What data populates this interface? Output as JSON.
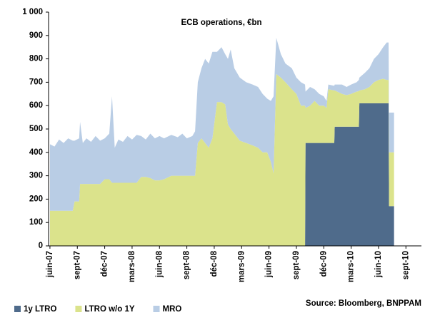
{
  "chart_data": {
    "type": "stacked_area",
    "title": "ECB operations, €bn",
    "source": "Source: Bloomberg, BNPPAM",
    "x": [
      0,
      0.5,
      1,
      1.5,
      2,
      2.5,
      2.7,
      3.2,
      3.3,
      3.6,
      4,
      4.5,
      5,
      5.5,
      6,
      6.5,
      6.8,
      7.1,
      7.5,
      8,
      8.5,
      9,
      9.5,
      10,
      10.5,
      11,
      11.5,
      12,
      12.5,
      13.3,
      14,
      14.5,
      15,
      15.6,
      15.9,
      16.2,
      16.6,
      17,
      17.4,
      17.8,
      18.3,
      18.8,
      19.2,
      19.5,
      19.8,
      20.2,
      20.8,
      21.5,
      22.2,
      22.8,
      23.3,
      23.8,
      24.2,
      24.5,
      24.8,
      25.3,
      25.8,
      26.5,
      27,
      27.5,
      27.95,
      28,
      28.5,
      29,
      29.5,
      30,
      30.3,
      30.5,
      31.15,
      31.2,
      32,
      32.5,
      33,
      33.6,
      33.85,
      33.9,
      34.5,
      35,
      35.5,
      36,
      36.5,
      36.9,
      37.1,
      37.15,
      37.7
    ],
    "series": [
      {
        "name": "1y LTRO",
        "color": "#4f6b8b",
        "values": [
          0,
          0,
          0,
          0,
          0,
          0,
          0,
          0,
          0,
          0,
          0,
          0,
          0,
          0,
          0,
          0,
          0,
          0,
          0,
          0,
          0,
          0,
          0,
          0,
          0,
          0,
          0,
          0,
          0,
          0,
          0,
          0,
          0,
          0,
          0,
          0,
          0,
          0,
          0,
          0,
          0,
          0,
          0,
          0,
          0,
          0,
          0,
          0,
          0,
          0,
          0,
          0,
          0,
          0,
          0,
          0,
          0,
          0,
          0,
          0,
          0,
          440,
          440,
          440,
          440,
          440,
          440,
          440,
          440,
          510,
          510,
          510,
          510,
          510,
          510,
          610,
          610,
          610,
          610,
          610,
          610,
          610,
          610,
          170,
          170
        ]
      },
      {
        "name": "LTRO w/o 1Y",
        "color": "#dbe38c",
        "values": [
          150,
          150,
          150,
          150,
          150,
          150,
          190,
          190,
          265,
          265,
          265,
          265,
          265,
          265,
          285,
          285,
          270,
          270,
          270,
          270,
          270,
          270,
          270,
          295,
          295,
          290,
          280,
          280,
          285,
          300,
          300,
          300,
          300,
          300,
          300,
          440,
          460,
          440,
          420,
          460,
          615,
          615,
          605,
          520,
          500,
          480,
          450,
          440,
          430,
          420,
          400,
          400,
          360,
          310,
          735,
          720,
          700,
          670,
          650,
          600,
          600,
          150,
          160,
          180,
          160,
          160,
          150,
          230,
          225,
          155,
          140,
          135,
          140,
          150,
          152,
          55,
          60,
          70,
          90,
          100,
          105,
          100,
          100,
          230,
          230
        ]
      },
      {
        "name": "MRO",
        "color": "#b9cde5",
        "values": [
          285,
          275,
          305,
          290,
          310,
          300,
          260,
          270,
          265,
          175,
          195,
          180,
          205,
          185,
          175,
          195,
          370,
          150,
          185,
          175,
          200,
          185,
          205,
          175,
          160,
          190,
          180,
          190,
          175,
          175,
          165,
          180,
          160,
          170,
          190,
          260,
          300,
          360,
          360,
          370,
          215,
          235,
          215,
          280,
          340,
          280,
          270,
          260,
          260,
          260,
          250,
          230,
          260,
          330,
          155,
          100,
          80,
          90,
          70,
          100,
          90,
          70,
          80,
          50,
          50,
          40,
          30,
          20,
          20,
          25,
          40,
          35,
          40,
          40,
          48,
          55,
          70,
          80,
          100,
          110,
          135,
          160,
          160,
          170,
          170
        ]
      }
    ],
    "xlim": [
      -0.15,
      40.7
    ],
    "xticks": [
      {
        "value": 0,
        "label": "juin-07"
      },
      {
        "value": 3,
        "label": "sept-07"
      },
      {
        "value": 6,
        "label": "déc-07"
      },
      {
        "value": 9,
        "label": "mars-08"
      },
      {
        "value": 12,
        "label": "juin-08"
      },
      {
        "value": 15,
        "label": "sept-08"
      },
      {
        "value": 18,
        "label": "déc-08"
      },
      {
        "value": 21,
        "label": "mars-09"
      },
      {
        "value": 24,
        "label": "juin-09"
      },
      {
        "value": 27,
        "label": "sept-09"
      },
      {
        "value": 30,
        "label": "déc-09"
      },
      {
        "value": 33,
        "label": "mars-10"
      },
      {
        "value": 36,
        "label": "juin-10"
      },
      {
        "value": 39,
        "label": "sept-10"
      }
    ],
    "ylim": [
      0,
      1000
    ],
    "yticks": [
      0,
      100,
      200,
      300,
      400,
      500,
      600,
      700,
      800,
      900,
      {
        "value": 1000,
        "label": "1 000"
      }
    ],
    "legend": "bottom-left"
  }
}
